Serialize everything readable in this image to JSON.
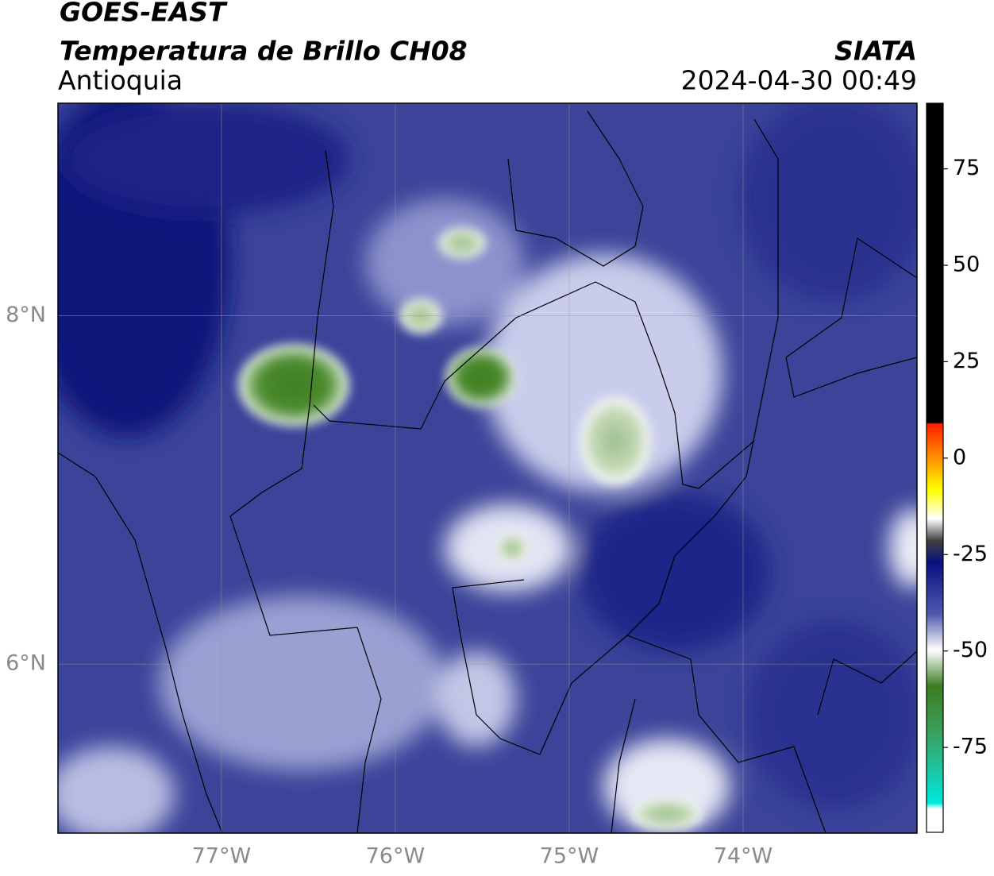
{
  "header": {
    "title": "GOES-EAST",
    "subtitle": "Temperatura de Brillo CH08",
    "region": "Antioquia",
    "source": "SIATA",
    "datetime": "2024-04-30 00:49"
  },
  "map": {
    "xlim": [
      -77.94,
      -73.0
    ],
    "ylim": [
      5.03,
      9.22
    ],
    "xticks": [
      {
        "value": -77,
        "label": "77°W"
      },
      {
        "value": -76,
        "label": "76°W"
      },
      {
        "value": -75,
        "label": "75°W"
      },
      {
        "value": -74,
        "label": "74°W"
      }
    ],
    "yticks": [
      {
        "value": 8,
        "label": "8°N"
      },
      {
        "value": 6,
        "label": "6°N"
      }
    ],
    "grid": true
  },
  "colorbar": {
    "lim": [
      -97,
      92
    ],
    "ticks": [
      75,
      50,
      25,
      0,
      -25,
      -50,
      -75
    ]
  }
}
